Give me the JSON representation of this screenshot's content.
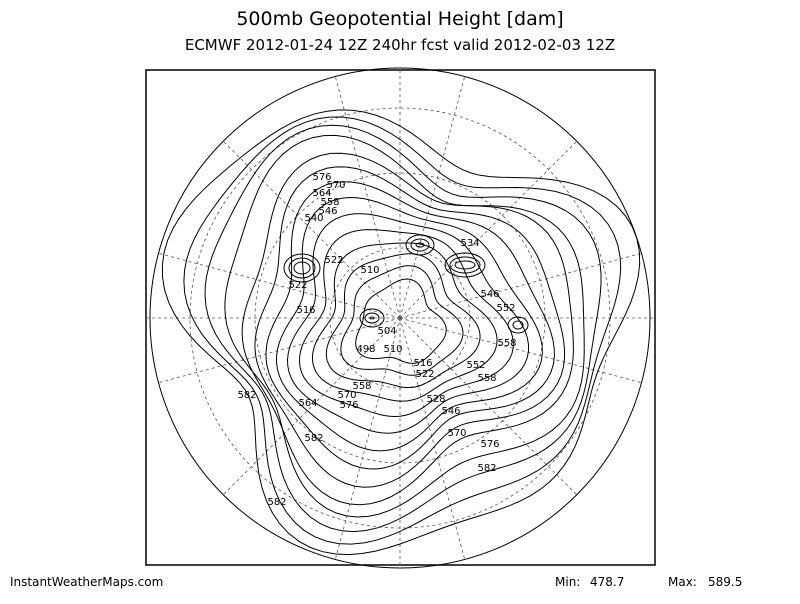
{
  "title": "500mb Geopotential Height [dam]",
  "subtitle": "ECMWF 2012-01-24 12Z 240hr fcst valid 2012-02-03 12Z",
  "footer": {
    "source": "InstantWeatherMaps.com",
    "min_label": "Min:",
    "min_value": 478.7,
    "max_label": "Max:",
    "max_value": 589.5
  },
  "contour_labels": [
    576,
    570,
    564,
    558,
    546,
    540,
    534,
    522,
    522,
    516,
    510,
    504,
    498,
    510,
    516,
    522,
    546,
    552,
    558,
    552,
    558,
    528,
    546,
    570,
    576,
    582,
    582,
    564,
    570,
    576,
    558,
    582,
    582
  ]
}
